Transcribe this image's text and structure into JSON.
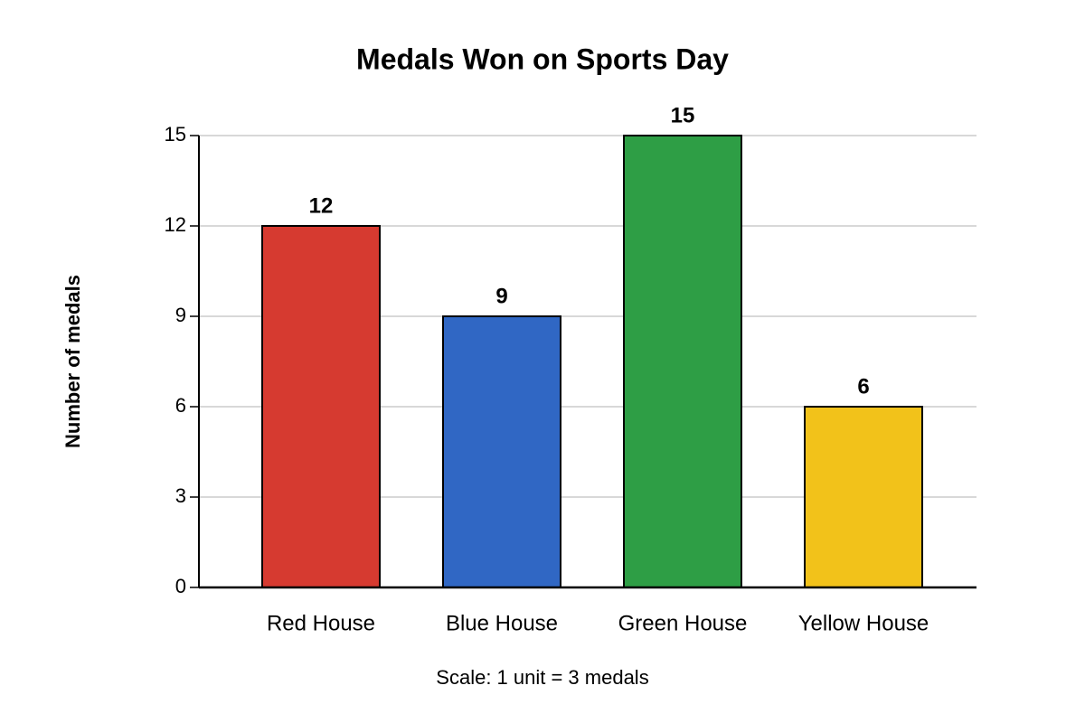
{
  "chart_data": {
    "type": "bar",
    "title": "Medals Won on Sports Day",
    "y_label": "Number of medals",
    "categories": [
      "Red House",
      "Blue House",
      "Green House",
      "Yellow House"
    ],
    "values": [
      12,
      9,
      15,
      6
    ],
    "colors": [
      "#d63a30",
      "#3067c4",
      "#2e9e45",
      "#f2c21a"
    ],
    "ylim": [
      0,
      15
    ],
    "yticks": [
      0,
      3,
      6,
      9,
      12,
      15
    ],
    "grid": true,
    "note": "Scale: 1 unit = 3 medals"
  }
}
